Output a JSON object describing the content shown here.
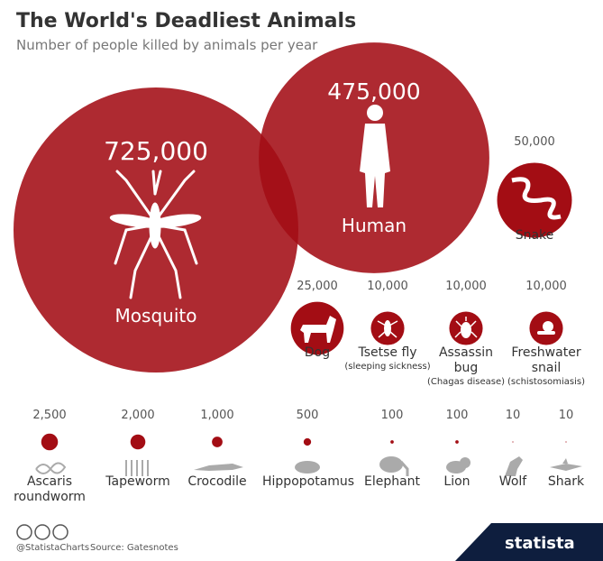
{
  "chart_data": {
    "type": "bubble",
    "title": "The World's Deadliest Animals",
    "subtitle": "Number of people killed by animals per year",
    "color": "#a30d14",
    "categories": [
      "Mosquito",
      "Human",
      "Snake",
      "Dog",
      "Tsetse fly",
      "Assassin bug",
      "Freshwater snail",
      "Ascaris roundworm",
      "Tapeworm",
      "Crocodile",
      "Hippopotamus",
      "Elephant",
      "Lion",
      "Wolf",
      "Shark"
    ],
    "values": [
      725000,
      475000,
      50000,
      25000,
      10000,
      10000,
      10000,
      2500,
      2000,
      1000,
      500,
      100,
      100,
      10,
      10
    ],
    "value_labels": [
      "725,000",
      "475,000",
      "50,000",
      "25,000",
      "10,000",
      "10,000",
      "10,000",
      "2,500",
      "2,000",
      "1,000",
      "500",
      "100",
      "100",
      "10",
      "10"
    ],
    "notes": [
      null,
      null,
      null,
      null,
      "(sleeping sickness)",
      "(Chagas disease)",
      "(schistosomiasis)",
      null,
      null,
      null,
      null,
      null,
      null,
      null,
      null
    ]
  },
  "footer": {
    "handle": "@StatistaCharts",
    "source": "Source: Gatesnotes",
    "brand": "statista"
  }
}
